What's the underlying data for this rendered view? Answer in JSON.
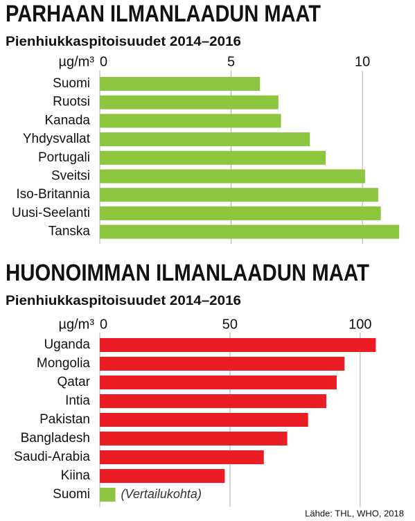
{
  "chart_data": [
    {
      "type": "bar",
      "orientation": "horizontal",
      "title": "PARHAAN ILMANLAADUN MAAT",
      "subtitle": "Pienhiukkaspitoisuudet 2014–2016",
      "axis_label": "µg/m³",
      "categories": [
        "Suomi",
        "Ruotsi",
        "Kanada",
        "Yhdysvallat",
        "Portugali",
        "Sveitsi",
        "Iso-Britannia",
        "Uusi-Seelanti",
        "Tanska"
      ],
      "values": [
        6.1,
        6.8,
        6.9,
        8.0,
        8.6,
        10.1,
        10.6,
        10.7,
        11.4
      ],
      "color": "#8cc63f",
      "xlim": [
        0,
        11.5
      ],
      "xticks": [
        0,
        5,
        10
      ],
      "grid": true
    },
    {
      "type": "bar",
      "orientation": "horizontal",
      "title": "HUONOIMMAN ILMANLAADUN MAAT",
      "subtitle": "Pienhiukkaspitoisuudet 2014–2016",
      "axis_label": "µg/m³",
      "categories": [
        "Uganda",
        "Mongolia",
        "Qatar",
        "Intia",
        "Pakistan",
        "Bangladesh",
        "Saudi-Arabia",
        "Kiina",
        "Suomi"
      ],
      "values": [
        106,
        94,
        91,
        87,
        80,
        72,
        63,
        48,
        6
      ],
      "colors": [
        "#ec1c24",
        "#ec1c24",
        "#ec1c24",
        "#ec1c24",
        "#ec1c24",
        "#ec1c24",
        "#ec1c24",
        "#ec1c24",
        "#8cc63f"
      ],
      "annotation": "(Vertailukohta)",
      "xlim": [
        0,
        116
      ],
      "xticks": [
        0,
        50,
        100
      ],
      "grid": true
    }
  ],
  "source": "Lähde: THL, WHO, 2018"
}
